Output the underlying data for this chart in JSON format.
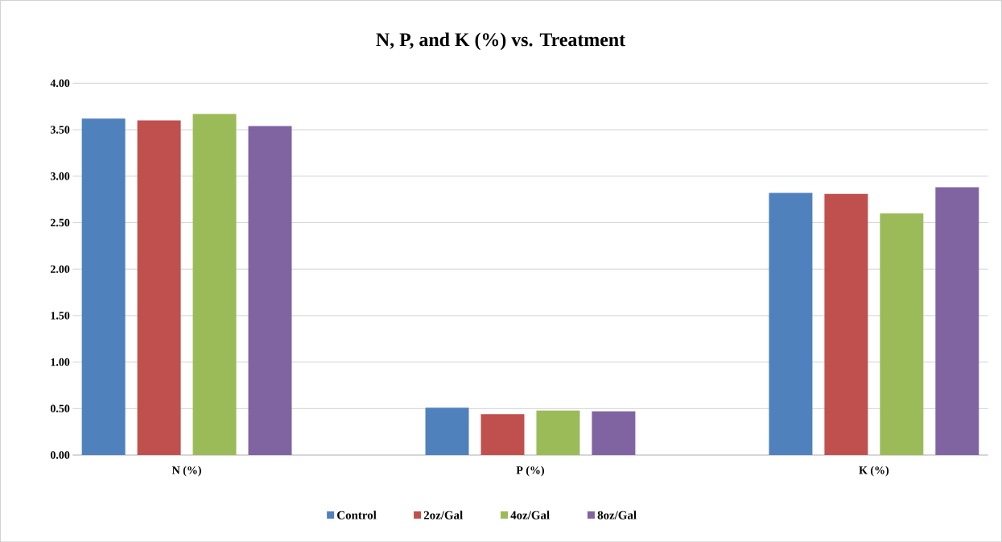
{
  "chart_data": {
    "type": "bar",
    "title": "N, P, and K (%) vs. Treatment",
    "categories": [
      "N (%)",
      "P (%)",
      "K (%)"
    ],
    "series": [
      {
        "name": "Control",
        "color": "#4f81bd",
        "values": [
          3.62,
          0.51,
          2.82
        ]
      },
      {
        "name": "2oz/Gal",
        "color": "#c0504d",
        "values": [
          3.6,
          0.44,
          2.81
        ]
      },
      {
        "name": "4oz/Gal",
        "color": "#9bbb59",
        "values": [
          3.67,
          0.48,
          2.6
        ]
      },
      {
        "name": "8oz/Gal",
        "color": "#8064a2",
        "values": [
          3.54,
          0.47,
          2.88
        ]
      }
    ],
    "ylim": [
      0,
      4
    ],
    "yticks": [
      {
        "value": 0,
        "label": "0.00"
      },
      {
        "value": 0.5,
        "label": "0.50"
      },
      {
        "value": 1,
        "label": "1.00"
      },
      {
        "value": 1.5,
        "label": "1.50"
      },
      {
        "value": 2,
        "label": "2.00"
      },
      {
        "value": 2.5,
        "label": "2.50"
      },
      {
        "value": 3,
        "label": "3.00"
      },
      {
        "value": 3.5,
        "label": "3.50"
      },
      {
        "value": 4,
        "label": "4.00"
      }
    ],
    "grid": "y",
    "legend": "bottom"
  }
}
